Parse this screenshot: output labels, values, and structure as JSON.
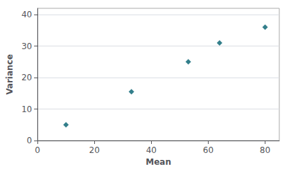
{
  "chart_data": {
    "type": "scatter",
    "x": [
      10,
      33,
      53,
      64,
      80
    ],
    "values": [
      5,
      15.5,
      25,
      31,
      36
    ],
    "xlabel": "Mean",
    "ylabel": "Variance",
    "xlim": [
      0,
      85
    ],
    "ylim": [
      0,
      42
    ],
    "xticks": [
      0,
      20,
      40,
      60,
      80
    ],
    "yticks": [
      0,
      10,
      20,
      30,
      40
    ],
    "color": "#005f6e",
    "marker": "diamond",
    "grid": true
  }
}
